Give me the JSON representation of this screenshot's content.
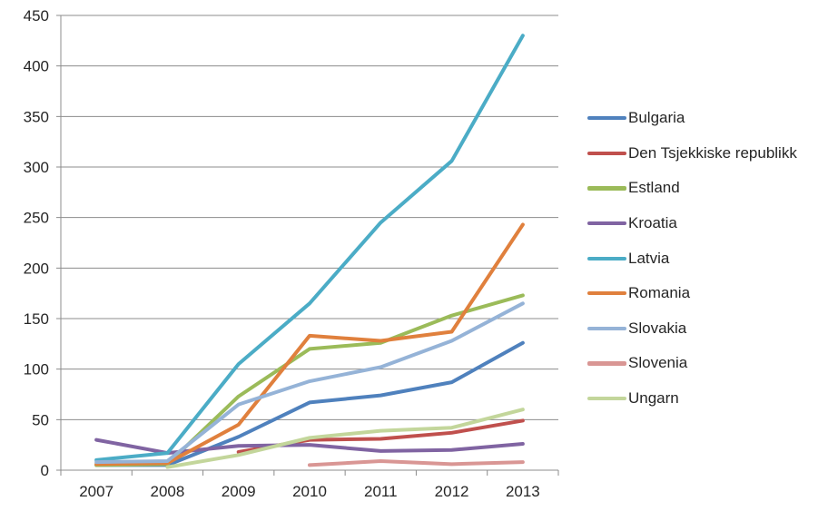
{
  "chart_data": {
    "type": "line",
    "title": "",
    "xlabel": "",
    "ylabel": "",
    "categories": [
      "2007",
      "2008",
      "2009",
      "2010",
      "2011",
      "2012",
      "2013"
    ],
    "ylim": [
      0,
      450
    ],
    "ytick_step": 50,
    "grid": true,
    "legend_position": "right",
    "series": [
      {
        "name": "Bulgaria",
        "color": "#4F81BD",
        "values": [
          5,
          5,
          33,
          67,
          74,
          87,
          126
        ]
      },
      {
        "name": "Den Tsjekkiske republikk",
        "color": "#C0504D",
        "values": [
          null,
          null,
          18,
          30,
          31,
          37,
          49
        ]
      },
      {
        "name": "Estland",
        "color": "#9BBB59",
        "values": [
          5,
          6,
          73,
          120,
          126,
          153,
          173
        ]
      },
      {
        "name": "Kroatia",
        "color": "#8064A2",
        "values": [
          30,
          17,
          24,
          25,
          19,
          20,
          26
        ]
      },
      {
        "name": "Latvia",
        "color": "#4BACC6",
        "values": [
          10,
          17,
          105,
          165,
          245,
          306,
          430
        ]
      },
      {
        "name": "Romania",
        "color": "#E0803D",
        "values": [
          6,
          7,
          45,
          133,
          128,
          137,
          243
        ]
      },
      {
        "name": "Slovakia",
        "color": "#95B3D7",
        "values": [
          8,
          9,
          65,
          88,
          102,
          128,
          165
        ]
      },
      {
        "name": "Slovenia",
        "color": "#D99694",
        "values": [
          null,
          null,
          null,
          5,
          9,
          6,
          8
        ]
      },
      {
        "name": "Ungarn",
        "color": "#C3D69B",
        "values": [
          null,
          3,
          15,
          32,
          39,
          42,
          60
        ]
      }
    ],
    "colors": {
      "gridline": "#8C8C8C",
      "axis": "#8C8C8C",
      "label": "#262626",
      "background": "#FFFFFF"
    }
  }
}
